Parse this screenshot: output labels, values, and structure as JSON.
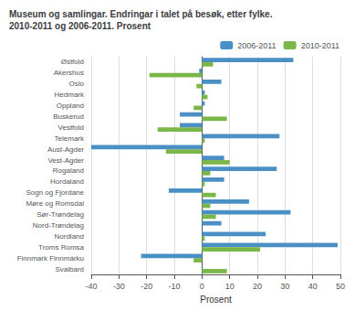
{
  "chart_data": {
    "type": "bar",
    "orientation": "horizontal",
    "title": "Museum og samlingar. Endringar i talet på besøk, etter fylke.\n2010-2011 og 2006-2011. Prosent",
    "xlabel": "Prosent",
    "categories": [
      "Østfold",
      "Akershus",
      "Oslo",
      "Hedmark",
      "Oppland",
      "Buskerud",
      "Vestfold",
      "Telemark",
      "Aust-Agder",
      "Vest-Agder",
      "Rogaland",
      "Hordaland",
      "Sogn og Fjordane",
      "Møre og Romsdal",
      "Sør-Trøndelag",
      "Nord-Trøndelag",
      "Nordland",
      "Troms Romsa",
      "Finnmark Finnmárku",
      "Svalbard"
    ],
    "series": [
      {
        "name": "2006-2011",
        "color": "#4a90c4",
        "values": [
          33,
          -1,
          7,
          1,
          1,
          -8,
          -8,
          28,
          -40,
          8,
          27,
          8,
          -12,
          17,
          32,
          7,
          23,
          49,
          -22,
          0
        ]
      },
      {
        "name": "2010-2011",
        "color": "#7ab648",
        "values": [
          4,
          -19,
          -2,
          2,
          -3,
          9,
          -16,
          1,
          -13,
          10,
          3,
          1,
          5,
          3,
          5,
          0,
          1,
          21,
          -3,
          9
        ]
      }
    ],
    "xlim": [
      -40,
      50
    ],
    "xticks": [
      -40,
      -30,
      -20,
      -10,
      0,
      10,
      20,
      30,
      40,
      50
    ],
    "grid": true,
    "legend": "upper right"
  }
}
